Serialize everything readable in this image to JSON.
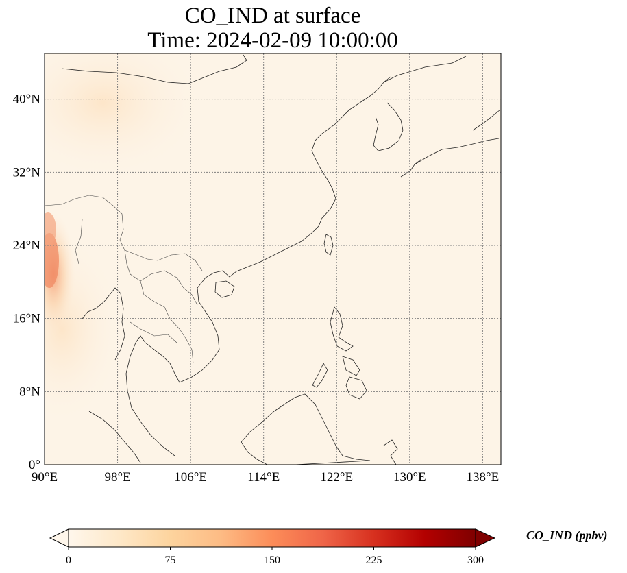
{
  "title": {
    "line1": "CO_IND at surface",
    "line2": "Time: 2024-02-09 10:00:00"
  },
  "map": {
    "extent": {
      "lon": [
        90,
        140
      ],
      "lat": [
        0,
        45
      ]
    },
    "background_color": "#fdf4e7",
    "lon_ticks": [
      {
        "value": 90,
        "label": "90°E"
      },
      {
        "value": 98,
        "label": "98°E"
      },
      {
        "value": 106,
        "label": "106°E"
      },
      {
        "value": 114,
        "label": "114°E"
      },
      {
        "value": 122,
        "label": "122°E"
      },
      {
        "value": 130,
        "label": "130°E"
      },
      {
        "value": 138,
        "label": "138°E"
      }
    ],
    "lat_ticks": [
      {
        "value": 0,
        "label": "0°"
      },
      {
        "value": 8,
        "label": "8°N"
      },
      {
        "value": 16,
        "label": "16°N"
      },
      {
        "value": 24,
        "label": "24°N"
      },
      {
        "value": 32,
        "label": "32°N"
      },
      {
        "value": 40,
        "label": "40°N"
      }
    ],
    "gridlines": true
  },
  "colorbar": {
    "label": "CO_IND (ppbv)",
    "ticks": [
      {
        "value": 0,
        "label": "0"
      },
      {
        "value": 75,
        "label": "75"
      },
      {
        "value": 150,
        "label": "150"
      },
      {
        "value": 225,
        "label": "225"
      },
      {
        "value": 300,
        "label": "300"
      }
    ],
    "range": [
      0,
      300
    ],
    "extend": "both",
    "colormap": "OrRd",
    "colors": [
      "#fff7ec",
      "#fee8c8",
      "#fdd49e",
      "#fdbb84",
      "#fc8d59",
      "#ef6548",
      "#d7301f",
      "#b30000",
      "#7f0000"
    ]
  }
}
